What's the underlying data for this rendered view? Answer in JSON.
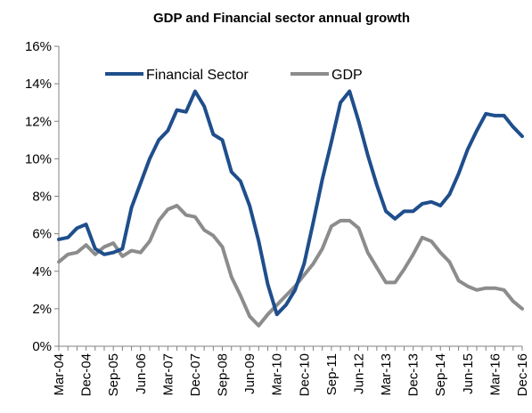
{
  "chart_data": {
    "type": "line",
    "title": "GDP and Financial  sector annual growth",
    "xlabel": "",
    "ylabel": "",
    "ylim": [
      0,
      16
    ],
    "y_ticks": [
      "0%",
      "2%",
      "4%",
      "6%",
      "8%",
      "10%",
      "12%",
      "14%",
      "16%"
    ],
    "x_tick_labels": [
      "Mar-04",
      "Dec-04",
      "Sep-05",
      "Jun-06",
      "Mar-07",
      "Dec-07",
      "Sep-08",
      "Jun-09",
      "Mar-10",
      "Dec-10",
      "Sep-11",
      "Jun-12",
      "Mar-13",
      "Dec-13",
      "Sep-14",
      "Jun-15",
      "Mar-16",
      "Dec-16"
    ],
    "x": [
      "Mar-04",
      "Jun-04",
      "Sep-04",
      "Dec-04",
      "Mar-05",
      "Jun-05",
      "Sep-05",
      "Dec-05",
      "Mar-06",
      "Jun-06",
      "Sep-06",
      "Dec-06",
      "Mar-07",
      "Jun-07",
      "Sep-07",
      "Dec-07",
      "Mar-08",
      "Jun-08",
      "Sep-08",
      "Dec-08",
      "Mar-09",
      "Jun-09",
      "Sep-09",
      "Dec-09",
      "Mar-10",
      "Jun-10",
      "Sep-10",
      "Dec-10",
      "Mar-11",
      "Jun-11",
      "Sep-11",
      "Dec-11",
      "Mar-12",
      "Jun-12",
      "Sep-12",
      "Dec-12",
      "Mar-13",
      "Jun-13",
      "Sep-13",
      "Dec-13",
      "Mar-14",
      "Jun-14",
      "Sep-14",
      "Dec-14",
      "Mar-15",
      "Jun-15",
      "Sep-15",
      "Dec-15",
      "Mar-16",
      "Jun-16",
      "Sep-16",
      "Dec-16"
    ],
    "grid": false,
    "legend_position": "top-left",
    "series": [
      {
        "name": "Financial Sector",
        "color": "#1f4e8c",
        "values": [
          5.7,
          5.8,
          6.3,
          6.5,
          5.2,
          4.9,
          5.0,
          5.2,
          7.4,
          8.7,
          10.0,
          11.0,
          11.5,
          12.6,
          12.5,
          13.6,
          12.8,
          11.3,
          11.0,
          9.3,
          8.8,
          7.5,
          5.6,
          3.3,
          1.7,
          2.2,
          3.0,
          4.4,
          6.6,
          8.9,
          10.9,
          13.0,
          13.6,
          12.0,
          10.2,
          8.6,
          7.2,
          6.8,
          7.2,
          7.2,
          7.6,
          7.7,
          7.5,
          8.1,
          9.2,
          10.5,
          11.5,
          12.4,
          12.3,
          12.3,
          11.7,
          11.2
        ]
      },
      {
        "name": "GDP",
        "color": "#8c8c8c",
        "values": [
          4.5,
          4.9,
          5.0,
          5.4,
          4.9,
          5.3,
          5.5,
          4.8,
          5.1,
          5.0,
          5.6,
          6.7,
          7.3,
          7.5,
          7.0,
          6.9,
          6.2,
          5.9,
          5.3,
          3.7,
          2.7,
          1.6,
          1.1,
          1.7,
          2.2,
          2.7,
          3.2,
          3.8,
          4.4,
          5.2,
          6.4,
          6.7,
          6.7,
          6.3,
          5.0,
          4.2,
          3.4,
          3.4,
          4.1,
          4.9,
          5.8,
          5.6,
          5.0,
          4.5,
          3.5,
          3.2,
          3.0,
          3.1,
          3.1,
          3.0,
          2.4,
          2.0
        ]
      }
    ]
  }
}
